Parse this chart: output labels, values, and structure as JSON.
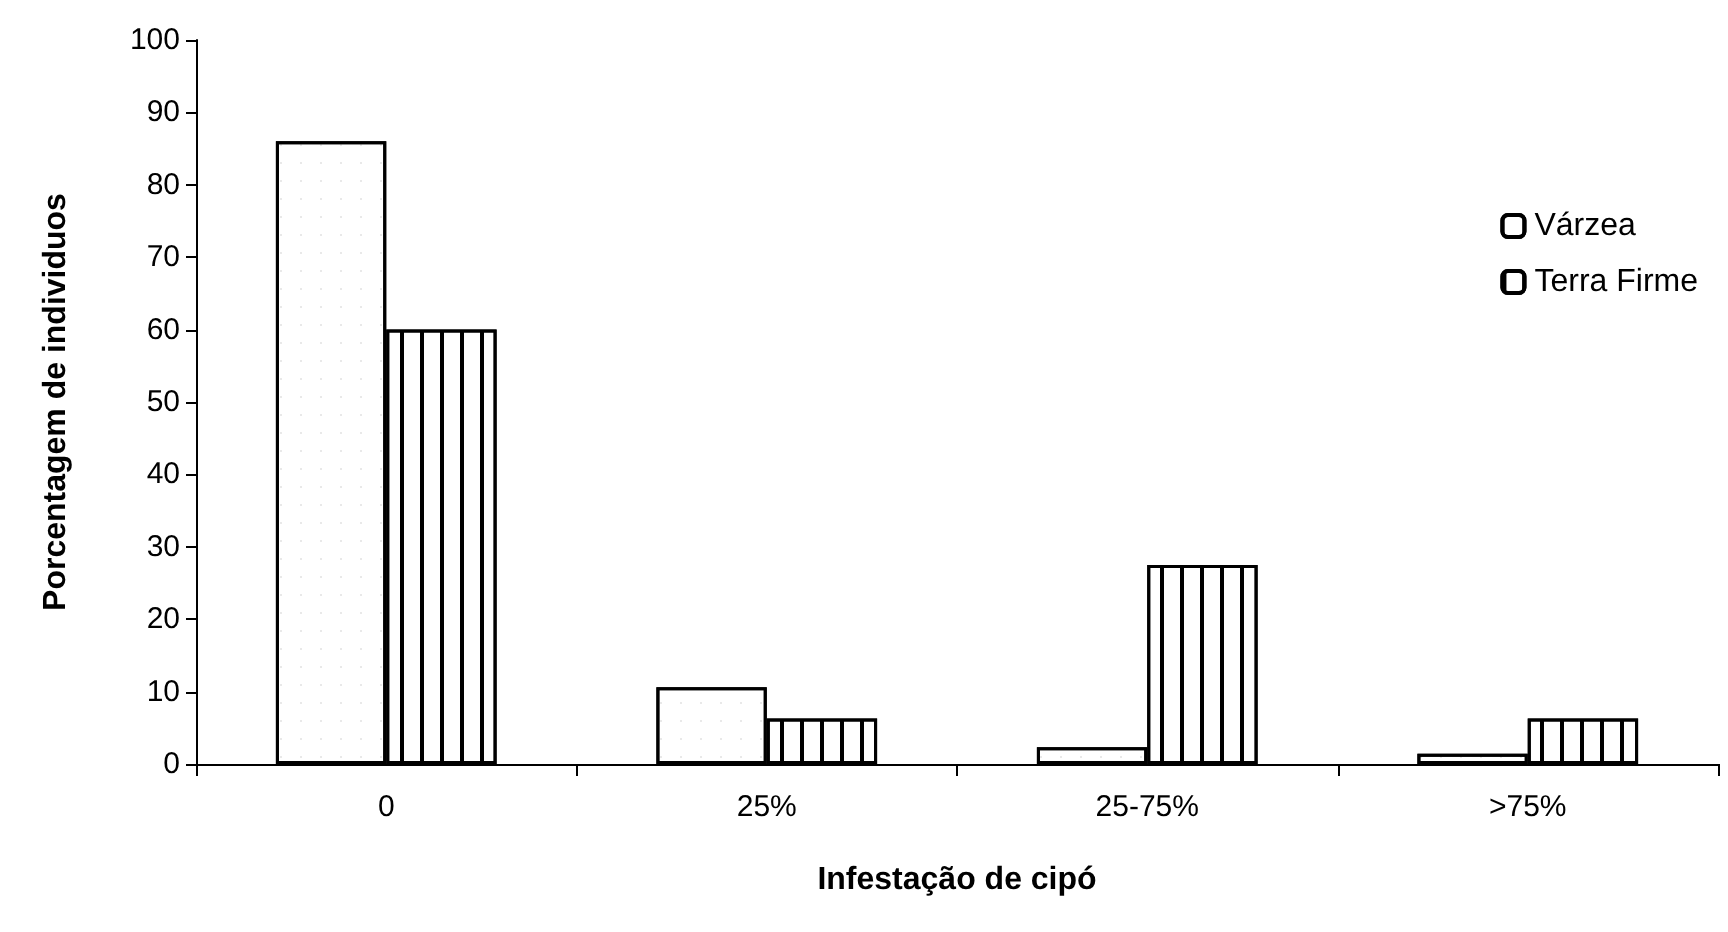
{
  "chart_data": {
    "type": "bar",
    "xlabel": "Infestação de cipó",
    "ylabel": "Porcentagem de individuos",
    "categories": [
      "0",
      "25%",
      "25-75%",
      ">75%"
    ],
    "series": [
      {
        "name": "Várzea",
        "color": "#ffffff",
        "values": [
          86,
          10.6,
          2.3,
          1.4
        ]
      },
      {
        "name": "Terra Firme",
        "color": "#ffffff",
        "values": [
          60,
          6.3,
          27.5,
          6.3
        ]
      }
    ],
    "ylim": [
      0,
      100
    ],
    "yticks": [
      0,
      10,
      20,
      30,
      40,
      50,
      60,
      70,
      80,
      90,
      100
    ],
    "grid": false,
    "legend": "top right"
  }
}
